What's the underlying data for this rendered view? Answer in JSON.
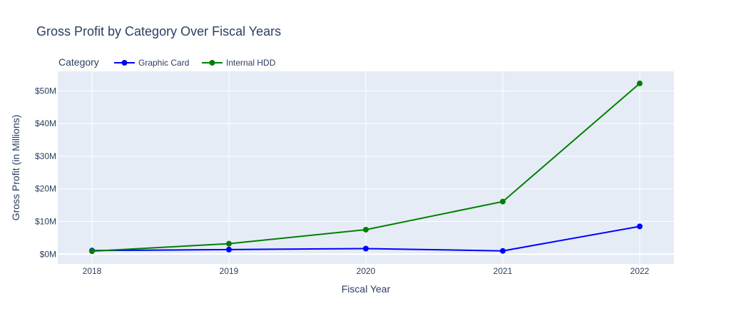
{
  "chart_data": {
    "type": "line",
    "title": "Gross Profit by Category Over Fiscal Years",
    "xlabel": "Fiscal Year",
    "ylabel": "Gross Profit (in Millions)",
    "x": [
      2018,
      2019,
      2020,
      2021,
      2022
    ],
    "x_tick_labels": [
      "2018",
      "2019",
      "2020",
      "2021",
      "2022"
    ],
    "xlim": [
      2017.75,
      2022.25
    ],
    "ylim": [
      -3.0,
      56.0
    ],
    "y_ticks": [
      0,
      10,
      20,
      30,
      40,
      50
    ],
    "y_tick_labels": [
      "$0M",
      "$10M",
      "$20M",
      "$30M",
      "$40M",
      "$50M"
    ],
    "grid": true,
    "legend": {
      "title": "Category",
      "placement": "top-left, horizontal"
    },
    "series": [
      {
        "name": "Graphic Card",
        "color": "#0000ff",
        "values": [
          1.1,
          1.4,
          1.7,
          1.0,
          8.5
        ]
      },
      {
        "name": "Internal HDD",
        "color": "#008000",
        "values": [
          0.9,
          3.2,
          7.5,
          16.1,
          52.3
        ]
      }
    ],
    "colors": {
      "plot_background": "#e5ecf6",
      "grid": "#ffffff",
      "text": "#2a3f5f"
    }
  }
}
